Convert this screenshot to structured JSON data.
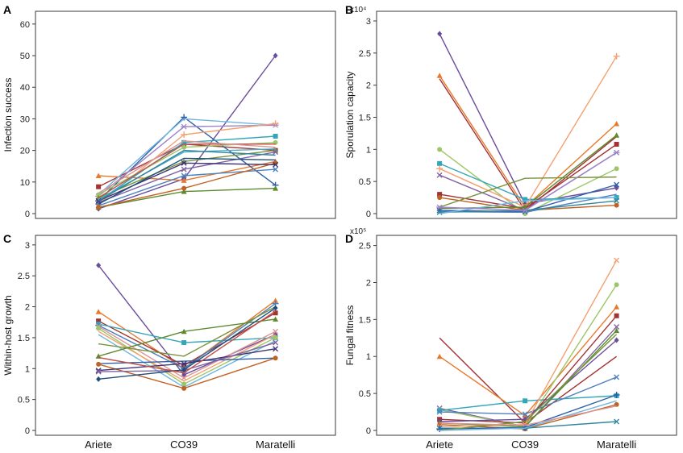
{
  "figure": {
    "categories": [
      "Ariete",
      "CO39",
      "Maratelli"
    ]
  },
  "chart_data": [
    {
      "panel": "A",
      "type": "line",
      "title": "",
      "xlabel": "",
      "ylabel": "Infection success",
      "multiplier": "",
      "ylim": [
        0,
        62
      ],
      "yticks": [
        0,
        10,
        20,
        30,
        40,
        50,
        60
      ],
      "categories": [
        "Ariete",
        "CO39",
        "Maratelli"
      ],
      "series": [
        {
          "values": [
            1.5,
            11,
            50
          ],
          "color": "#6a4c9c",
          "marker": "diamond"
        },
        {
          "values": [
            12,
            10.5,
            16.5
          ],
          "color": "#e8792b",
          "marker": "triangle"
        },
        {
          "values": [
            8.5,
            22,
            20
          ],
          "color": "#a33234",
          "marker": "square"
        },
        {
          "values": [
            4,
            30.5,
            9
          ],
          "color": "#2f5fa7",
          "marker": "plus"
        },
        {
          "values": [
            6,
            30,
            28
          ],
          "color": "#6fb6e0",
          "marker": "none"
        },
        {
          "values": [
            5.5,
            27.5,
            28
          ],
          "color": "#9b84c9",
          "marker": "star"
        },
        {
          "values": [
            3,
            25,
            28.5
          ],
          "color": "#f4a071",
          "marker": "plus"
        },
        {
          "values": [
            4,
            22.5,
            24.5
          ],
          "color": "#33a6b8",
          "marker": "square"
        },
        {
          "values": [
            6,
            21,
            22.5
          ],
          "color": "#9cc667",
          "marker": "circle"
        },
        {
          "values": [
            5,
            16.5,
            20
          ],
          "color": "#77933c",
          "marker": "triangle"
        },
        {
          "values": [
            4.5,
            19.5,
            20.5
          ],
          "color": "#4bacc6",
          "marker": "none"
        },
        {
          "values": [
            2,
            7,
            8
          ],
          "color": "#5e8a2e",
          "marker": "triangle"
        },
        {
          "values": [
            3.5,
            14,
            19.5
          ],
          "color": "#8064a2",
          "marker": "cross"
        },
        {
          "values": [
            2.5,
            12,
            14
          ],
          "color": "#4f81bd",
          "marker": "cross"
        },
        {
          "values": [
            2,
            8,
            16
          ],
          "color": "#c06322",
          "marker": "circle"
        },
        {
          "values": [
            5,
            22,
            22
          ],
          "color": "#c0504d",
          "marker": "none"
        },
        {
          "values": [
            4,
            16,
            15.5
          ],
          "color": "#403474",
          "marker": "cross"
        },
        {
          "values": [
            3,
            17.5,
            17
          ],
          "color": "#1f4e79",
          "marker": "none"
        },
        {
          "values": [
            6.5,
            23,
            21
          ],
          "color": "#d99694",
          "marker": "none"
        },
        {
          "values": [
            4,
            20,
            18.5
          ],
          "color": "#31859c",
          "marker": "none"
        }
      ]
    },
    {
      "panel": "B",
      "type": "line",
      "title": "",
      "xlabel": "",
      "ylabel": "Sporulation capacity",
      "multiplier": "x10⁴",
      "ylim": [
        0,
        3.05
      ],
      "yticks": [
        0,
        0.5,
        1,
        1.5,
        2,
        2.5,
        3
      ],
      "categories": [
        "Ariete",
        "CO39",
        "Maratelli"
      ],
      "series": [
        {
          "values": [
            2.8,
            0.15,
            0.4
          ],
          "color": "#6a4c9c",
          "marker": "diamond"
        },
        {
          "values": [
            2.15,
            0.1,
            1.4
          ],
          "color": "#e8792b",
          "marker": "triangle"
        },
        {
          "values": [
            2.1,
            0.05,
            1.2
          ],
          "color": "#a33234",
          "marker": "none"
        },
        {
          "values": [
            1.0,
            0.0,
            0.7
          ],
          "color": "#9cc667",
          "marker": "circle"
        },
        {
          "values": [
            0.78,
            0.22,
            0.25
          ],
          "color": "#33a6b8",
          "marker": "square"
        },
        {
          "values": [
            0.7,
            0.1,
            2.45
          ],
          "color": "#f4a071",
          "marker": "plus"
        },
        {
          "values": [
            0.6,
            0.05,
            0.95
          ],
          "color": "#8064a2",
          "marker": "cross"
        },
        {
          "values": [
            0.3,
            0.08,
            1.08
          ],
          "color": "#a33234",
          "marker": "square"
        },
        {
          "values": [
            0.25,
            0.05,
            0.13
          ],
          "color": "#c06322",
          "marker": "circle"
        },
        {
          "values": [
            0.1,
            0.55,
            0.57
          ],
          "color": "#77933c",
          "marker": "none"
        },
        {
          "values": [
            0.08,
            0.1,
            1.22
          ],
          "color": "#5e8a2e",
          "marker": "triangle"
        },
        {
          "values": [
            0.05,
            0.03,
            0.45
          ],
          "color": "#2f5fa7",
          "marker": "cross"
        },
        {
          "values": [
            0.03,
            0.02,
            0.3
          ],
          "color": "#4f81bd",
          "marker": "none"
        },
        {
          "values": [
            0.02,
            0.05,
            0.2
          ],
          "color": "#31859c",
          "marker": "cross"
        },
        {
          "values": [
            0.0,
            0.2,
            0.25
          ],
          "color": "#6fb6e0",
          "marker": "none"
        },
        {
          "values": [
            0.1,
            0.05,
            0.95
          ],
          "color": "#9b84c9",
          "marker": "star"
        }
      ]
    },
    {
      "panel": "C",
      "type": "line",
      "title": "",
      "xlabel": "",
      "ylabel": "Within-host growth",
      "multiplier": "",
      "ylim": [
        0,
        3.05
      ],
      "yticks": [
        0,
        0.5,
        1,
        1.5,
        2,
        2.5,
        3
      ],
      "categories": [
        "Ariete",
        "CO39",
        "Maratelli"
      ],
      "series": [
        {
          "values": [
            2.67,
            0.9,
            1.55
          ],
          "color": "#6a4c9c",
          "marker": "diamond"
        },
        {
          "values": [
            1.92,
            1.0,
            2.1
          ],
          "color": "#e8792b",
          "marker": "triangle"
        },
        {
          "values": [
            1.77,
            1.05,
            1.9
          ],
          "color": "#a33234",
          "marker": "square"
        },
        {
          "values": [
            1.72,
            1.42,
            1.5
          ],
          "color": "#33a6b8",
          "marker": "square"
        },
        {
          "values": [
            1.7,
            1.0,
            2.05
          ],
          "color": "#4f81bd",
          "marker": "plus"
        },
        {
          "values": [
            1.68,
            0.85,
            1.6
          ],
          "color": "#d99694",
          "marker": "cross"
        },
        {
          "values": [
            1.65,
            0.75,
            1.5
          ],
          "color": "#9cc667",
          "marker": "circle"
        },
        {
          "values": [
            1.6,
            0.8,
            1.55
          ],
          "color": "#f4a071",
          "marker": "none"
        },
        {
          "values": [
            1.55,
            0.7,
            1.45
          ],
          "color": "#6fb6e0",
          "marker": "none"
        },
        {
          "values": [
            1.4,
            1.2,
            2.0
          ],
          "color": "#77933c",
          "marker": "none"
        },
        {
          "values": [
            1.2,
            1.6,
            1.8
          ],
          "color": "#5e8a2e",
          "marker": "triangle"
        },
        {
          "values": [
            1.08,
            1.12,
            1.17
          ],
          "color": "#2f5fa7",
          "marker": "none"
        },
        {
          "values": [
            1.07,
            0.68,
            1.17
          ],
          "color": "#c06322",
          "marker": "circle"
        },
        {
          "values": [
            0.97,
            1.08,
            1.32
          ],
          "color": "#403474",
          "marker": "cross"
        },
        {
          "values": [
            0.95,
            0.97,
            1.42
          ],
          "color": "#8064a2",
          "marker": "cross"
        },
        {
          "values": [
            0.83,
            0.98,
            1.98
          ],
          "color": "#1f4e79",
          "marker": "diamond"
        },
        {
          "values": [
            1.18,
            0.93,
            1.93
          ],
          "color": "#c0504d",
          "marker": "none"
        }
      ]
    },
    {
      "panel": "D",
      "type": "line",
      "title": "",
      "xlabel": "",
      "ylabel": "Fungal fitness",
      "multiplier": "x10⁵",
      "ylim": [
        0,
        2.55
      ],
      "yticks": [
        0,
        0.5,
        1,
        1.5,
        2,
        2.5
      ],
      "categories": [
        "Ariete",
        "CO39",
        "Maratelli"
      ],
      "series": [
        {
          "values": [
            1.25,
            0.1,
            1.0
          ],
          "color": "#a33234",
          "marker": "none"
        },
        {
          "values": [
            1.0,
            0.2,
            1.67
          ],
          "color": "#e8792b",
          "marker": "triangle"
        },
        {
          "values": [
            0.3,
            0.05,
            1.4
          ],
          "color": "#8064a2",
          "marker": "cross"
        },
        {
          "values": [
            0.28,
            0.05,
            1.97
          ],
          "color": "#9cc667",
          "marker": "circle"
        },
        {
          "values": [
            0.27,
            0.4,
            0.47
          ],
          "color": "#33a6b8",
          "marker": "square"
        },
        {
          "values": [
            0.25,
            0.22,
            0.72
          ],
          "color": "#4f81bd",
          "marker": "cross"
        },
        {
          "values": [
            0.15,
            0.1,
            1.55
          ],
          "color": "#a33234",
          "marker": "square"
        },
        {
          "values": [
            0.12,
            0.15,
            1.22
          ],
          "color": "#6a4c9c",
          "marker": "diamond"
        },
        {
          "values": [
            0.1,
            0.05,
            1.35
          ],
          "color": "#5e8a2e",
          "marker": "triangle"
        },
        {
          "values": [
            0.08,
            0.02,
            0.35
          ],
          "color": "#c06322",
          "marker": "circle"
        },
        {
          "values": [
            0.05,
            0.08,
            2.3
          ],
          "color": "#f4a071",
          "marker": "cross"
        },
        {
          "values": [
            0.03,
            0.03,
            0.12
          ],
          "color": "#31859c",
          "marker": "cross"
        },
        {
          "values": [
            0.02,
            0.04,
            0.48
          ],
          "color": "#2f5fa7",
          "marker": "plus"
        },
        {
          "values": [
            0.0,
            0.12,
            1.3
          ],
          "color": "#77933c",
          "marker": "none"
        },
        {
          "values": [
            0.0,
            0.03,
            0.4
          ],
          "color": "#6fb6e0",
          "marker": "none"
        },
        {
          "values": [
            0.1,
            0.07,
            0.33
          ],
          "color": "#d99694",
          "marker": "none"
        }
      ]
    }
  ]
}
